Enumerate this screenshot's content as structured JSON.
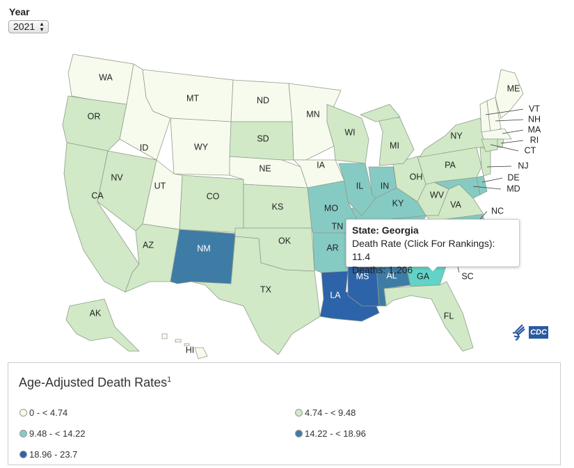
{
  "year_filter": {
    "label": "Year",
    "selected": "2021"
  },
  "colors": {
    "c0": "#f7fbee",
    "c1": "#d1e9c6",
    "c2": "#86cbc3",
    "c3": "#3e7ca6",
    "c4": "#2d63a8",
    "highlight": "#62d3c6"
  },
  "states": [
    {
      "abbr": "WA",
      "class": "c0"
    },
    {
      "abbr": "OR",
      "class": "c1"
    },
    {
      "abbr": "CA",
      "class": "c1"
    },
    {
      "abbr": "NV",
      "class": "c1"
    },
    {
      "abbr": "ID",
      "class": "c0"
    },
    {
      "abbr": "MT",
      "class": "c0"
    },
    {
      "abbr": "WY",
      "class": "c0"
    },
    {
      "abbr": "UT",
      "class": "c0"
    },
    {
      "abbr": "CO",
      "class": "c1"
    },
    {
      "abbr": "AZ",
      "class": "c1"
    },
    {
      "abbr": "NM",
      "class": "c3"
    },
    {
      "abbr": "ND",
      "class": "c0"
    },
    {
      "abbr": "SD",
      "class": "c1"
    },
    {
      "abbr": "NE",
      "class": "c0"
    },
    {
      "abbr": "KS",
      "class": "c1"
    },
    {
      "abbr": "OK",
      "class": "c1"
    },
    {
      "abbr": "TX",
      "class": "c1"
    },
    {
      "abbr": "MN",
      "class": "c0"
    },
    {
      "abbr": "IA",
      "class": "c0"
    },
    {
      "abbr": "WI",
      "class": "c1"
    },
    {
      "abbr": "MO",
      "class": "c2"
    },
    {
      "abbr": "AR",
      "class": "c2"
    },
    {
      "abbr": "LA",
      "class": "c4"
    },
    {
      "abbr": "MS",
      "class": "c4"
    },
    {
      "abbr": "AL",
      "class": "c3"
    },
    {
      "abbr": "GA",
      "class": "c2"
    },
    {
      "abbr": "FL",
      "class": "c1"
    },
    {
      "abbr": "SC",
      "class": "c2"
    },
    {
      "abbr": "NC",
      "class": "c2"
    },
    {
      "abbr": "TN",
      "class": "c2"
    },
    {
      "abbr": "KY",
      "class": "c2"
    },
    {
      "abbr": "IL",
      "class": "c2"
    },
    {
      "abbr": "IN",
      "class": "c2"
    },
    {
      "abbr": "OH",
      "class": "c1"
    },
    {
      "abbr": "MI",
      "class": "c1"
    },
    {
      "abbr": "WV",
      "class": "c1"
    },
    {
      "abbr": "VA",
      "class": "c1"
    },
    {
      "abbr": "MD",
      "class": "c2"
    },
    {
      "abbr": "DE",
      "class": "c2"
    },
    {
      "abbr": "PA",
      "class": "c1"
    },
    {
      "abbr": "NJ",
      "class": "c1"
    },
    {
      "abbr": "NY",
      "class": "c1"
    },
    {
      "abbr": "VT",
      "class": "c0"
    },
    {
      "abbr": "NH",
      "class": "c0"
    },
    {
      "abbr": "ME",
      "class": "c0"
    },
    {
      "abbr": "MA",
      "class": "c0"
    },
    {
      "abbr": "CT",
      "class": "c1"
    },
    {
      "abbr": "RI",
      "class": "c1"
    },
    {
      "abbr": "AK",
      "class": "c1"
    },
    {
      "abbr": "HI",
      "class": "c0"
    }
  ],
  "highlighted_state": "GA",
  "tooltip": {
    "state_line": "State: Georgia",
    "rate_line": "Death Rate (Click For Rankings): 11.4",
    "deaths_line": "Deaths: 1,206"
  },
  "logo": {
    "text": "CDC"
  },
  "legend": {
    "title": "Age-Adjusted Death Rates",
    "footnote_marker": "1",
    "items": [
      {
        "label": "0 - < 4.74",
        "class": "c0"
      },
      {
        "label": "4.74 - < 9.48",
        "class": "c1"
      },
      {
        "label": "9.48 - < 14.22",
        "class": "c2"
      },
      {
        "label": "14.22 - < 18.96",
        "class": "c3"
      },
      {
        "label": "18.96 - 23.7",
        "class": "c4"
      }
    ]
  }
}
